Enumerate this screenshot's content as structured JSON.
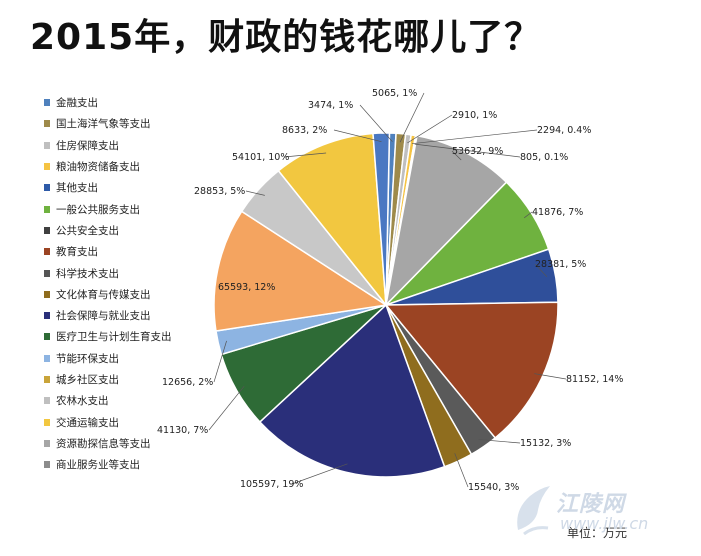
{
  "title": "2015年，财政的钱花哪儿了？",
  "unit": "单位：万元",
  "watermark": {
    "brand": "江陵网",
    "url": "www.jlw.cn"
  },
  "chart_data": {
    "type": "pie",
    "title": "2015年，财政的钱花哪儿了？",
    "unit": "单位：万元",
    "legend_position": "left",
    "slices": [
      {
        "name": "金融支出",
        "value": 3474,
        "pct": "1%",
        "color": "#4f81bd",
        "label": "3474, 1%"
      },
      {
        "name": "国土海洋气象等支出",
        "value": 5065,
        "pct": "1%",
        "color": "#9e8a4a",
        "label": "5065, 1%"
      },
      {
        "name": "住房保障支出",
        "value": 2910,
        "pct": "1%",
        "color": "#bfbfbf",
        "label": "2910, 1%"
      },
      {
        "name": "粮油物资储备支出",
        "value": 2294,
        "pct": "0.4%",
        "color": "#f5c342",
        "label": "2294, 0.4%"
      },
      {
        "name": "其他支出",
        "value": 805,
        "pct": "0.1%",
        "color": "#2e5aa8",
        "label": "805, 0.1%"
      },
      {
        "name": "一般公共服务支出",
        "value": 53632,
        "pct": "9%",
        "color": "#a6a6a6",
        "label": "53632, 9%"
      },
      {
        "name": "公共安全支出",
        "value": 41876,
        "pct": "7%",
        "color": "#6fb23f",
        "label": "41876, 7%"
      },
      {
        "name": "教育支出",
        "value": 28381,
        "pct": "5%",
        "color": "#2f4f9a",
        "label": "28381, 5%"
      },
      {
        "name": "科学技术支出",
        "value": 81152,
        "pct": "14%",
        "color": "#9b4423",
        "label": "81152, 14%"
      },
      {
        "name": "文化体育与传媒支出",
        "value": 15132,
        "pct": "3%",
        "color": "#5a5a5a",
        "label": "15132, 3%"
      },
      {
        "name": "社会保障与就业支出",
        "value": 15540,
        "pct": "3%",
        "color": "#8f6d1e",
        "label": "15540, 3%"
      },
      {
        "name": "医疗卫生与计划生育支出",
        "value": 105597,
        "pct": "19%",
        "color": "#2a2f7a",
        "label": "105597, 19%"
      },
      {
        "name": "节能环保支出",
        "value": 41130,
        "pct": "7%",
        "color": "#2e6b36",
        "label": "41130, 7%"
      },
      {
        "name": "城乡社区支出",
        "value": 12656,
        "pct": "2%",
        "color": "#8db4e2",
        "label": "12656, 2%"
      },
      {
        "name": "农林水支出",
        "value": 65593,
        "pct": "12%",
        "color": "#f4a460",
        "label": "65593, 12%"
      },
      {
        "name": "交通运输支出",
        "value": 28853,
        "pct": "5%",
        "color": "#c8c8c8",
        "label": "28853, 5%"
      },
      {
        "name": "资源勘探信息等支出",
        "value": 54101,
        "pct": "10%",
        "color": "#f2c740",
        "label": "54101, 10%"
      },
      {
        "name": "商业服务业等支出",
        "value": 8633,
        "pct": "2%",
        "color": "#4a78c2",
        "label": "8633, 2%"
      }
    ],
    "legend": [
      {
        "name": "金融支出",
        "color": "#4f81bd"
      },
      {
        "name": "国土海洋气象等支出",
        "color": "#9e8a4a"
      },
      {
        "name": "住房保障支出",
        "color": "#bfbfbf"
      },
      {
        "name": "粮油物资储备支出",
        "color": "#f5c342"
      },
      {
        "name": "其他支出",
        "color": "#2e5aa8"
      },
      {
        "name": "一般公共服务支出",
        "color": "#6fb23f"
      },
      {
        "name": "公共安全支出",
        "color": "#404040"
      },
      {
        "name": "教育支出",
        "color": "#9b4423"
      },
      {
        "name": "科学技术支出",
        "color": "#555555"
      },
      {
        "name": "文化体育与传媒支出",
        "color": "#8f6d1e"
      },
      {
        "name": "社会保障与就业支出",
        "color": "#2a2f7a"
      },
      {
        "name": "医疗卫生与计划生育支出",
        "color": "#2e6b36"
      },
      {
        "name": "节能环保支出",
        "color": "#8db4e2"
      },
      {
        "name": "城乡社区支出",
        "color": "#c9a43a"
      },
      {
        "name": "农林水支出",
        "color": "#bfbfbf"
      },
      {
        "name": "交通运输支出",
        "color": "#f2c740"
      },
      {
        "name": "资源勘探信息等支出",
        "color": "#a6a6a6"
      },
      {
        "name": "商业服务业等支出",
        "color": "#8c8c8c"
      }
    ]
  }
}
